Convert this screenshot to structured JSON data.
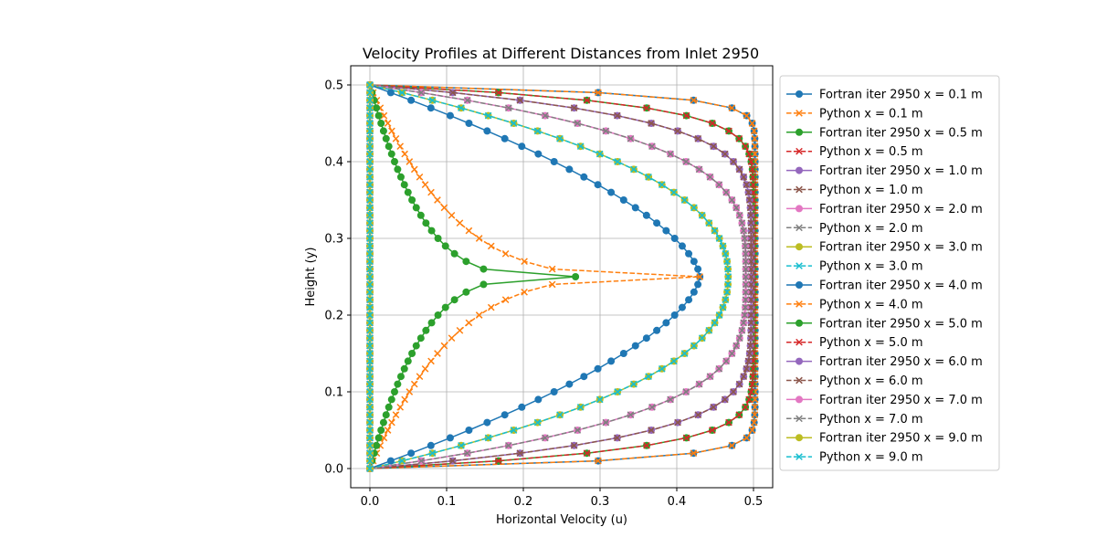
{
  "chart_data": {
    "type": "line",
    "title": "Velocity Profiles at Different Distances from Inlet 2950",
    "xlabel": "Horizontal Velocity (u)",
    "ylabel": "Height (y)",
    "xlim": [
      -0.025,
      0.525
    ],
    "ylim": [
      -0.025,
      0.525
    ],
    "xticks": [
      0.0,
      0.1,
      0.2,
      0.3,
      0.4,
      0.5
    ],
    "yticks": [
      0.0,
      0.1,
      0.2,
      0.3,
      0.4,
      0.5
    ],
    "grid": true,
    "legend_position": "right-outside",
    "series": [
      {
        "name": "Fortran iter 2950 x = 0.1 m",
        "color": "#1f77b4",
        "style": "solid",
        "marker": "circle",
        "profile": {
          "umax": 0.502,
          "p": 22
        }
      },
      {
        "name": "Python x = 0.1 m",
        "color": "#ff7f0e",
        "style": "dashed",
        "marker": "x",
        "profile": {
          "umax": 0.502,
          "p": 22
        }
      },
      {
        "name": "Fortran iter 2950 x = 0.5 m",
        "color": "#2ca02c",
        "style": "solid",
        "marker": "circle",
        "profile": {
          "umax": 0.5,
          "p": 10
        }
      },
      {
        "name": "Python x = 0.5 m",
        "color": "#d62728",
        "style": "dashed",
        "marker": "x",
        "profile": {
          "umax": 0.5,
          "p": 10
        }
      },
      {
        "name": "Fortran iter 2950 x = 1.0 m",
        "color": "#9467bd",
        "style": "solid",
        "marker": "circle",
        "profile": {
          "umax": 0.497,
          "p": 6
        }
      },
      {
        "name": "Python x = 1.0 m",
        "color": "#8c564b",
        "style": "dashed",
        "marker": "x",
        "profile": {
          "umax": 0.497,
          "p": 6
        }
      },
      {
        "name": "Fortran iter 2950 x = 2.0 m",
        "color": "#e377c2",
        "style": "solid",
        "marker": "circle",
        "profile": {
          "umax": 0.49,
          "p": 3.6
        }
      },
      {
        "name": "Python x = 2.0 m",
        "color": "#7f7f7f",
        "style": "dashed",
        "marker": "x",
        "profile": {
          "umax": 0.49,
          "p": 3.6
        }
      },
      {
        "name": "Fortran iter 2950 x = 3.0 m",
        "color": "#bcbd22",
        "style": "solid",
        "marker": "circle",
        "profile": {
          "umax": 0.467,
          "p": 2.3
        }
      },
      {
        "name": "Python x = 3.0 m",
        "color": "#17becf",
        "style": "dashed",
        "marker": "x",
        "profile": {
          "umax": 0.467,
          "p": 2.3
        }
      },
      {
        "name": "Fortran iter 2950 x = 4.0 m",
        "color": "#1f77b4",
        "style": "solid",
        "marker": "circle",
        "profile": {
          "umax": 0.43,
          "p": 1.6
        }
      },
      {
        "name": "Python x = 4.0 m",
        "color": "#ff7f0e",
        "style": "dashed",
        "marker": "x",
        "profile": {
          "umax": 0.43,
          "p": 0.25
        }
      },
      {
        "name": "Fortran iter 2950 x = 5.0 m",
        "color": "#2ca02c",
        "style": "solid",
        "marker": "circle",
        "profile": {
          "umax": 0.268,
          "p": 0.25
        }
      },
      {
        "name": "Python x = 5.0 m",
        "color": "#d62728",
        "style": "dashed",
        "marker": "x",
        "profile": {
          "umax": 0.0,
          "p": 1
        }
      },
      {
        "name": "Fortran iter 2950 x = 6.0 m",
        "color": "#9467bd",
        "style": "solid",
        "marker": "circle",
        "profile": {
          "umax": 0.0,
          "p": 1
        }
      },
      {
        "name": "Python x = 6.0 m",
        "color": "#8c564b",
        "style": "dashed",
        "marker": "x",
        "profile": {
          "umax": 0.0,
          "p": 1
        }
      },
      {
        "name": "Fortran iter 2950 x = 7.0 m",
        "color": "#e377c2",
        "style": "solid",
        "marker": "circle",
        "profile": {
          "umax": 0.0,
          "p": 1
        }
      },
      {
        "name": "Python x = 7.0 m",
        "color": "#7f7f7f",
        "style": "dashed",
        "marker": "x",
        "profile": {
          "umax": 0.0,
          "p": 1
        }
      },
      {
        "name": "Fortran iter 2950 x = 9.0 m",
        "color": "#bcbd22",
        "style": "solid",
        "marker": "circle",
        "profile": {
          "umax": 0.0,
          "p": 1
        }
      },
      {
        "name": "Python x = 9.0 m",
        "color": "#17becf",
        "style": "dashed",
        "marker": "x",
        "profile": {
          "umax": 0.0,
          "p": 1
        }
      }
    ]
  }
}
